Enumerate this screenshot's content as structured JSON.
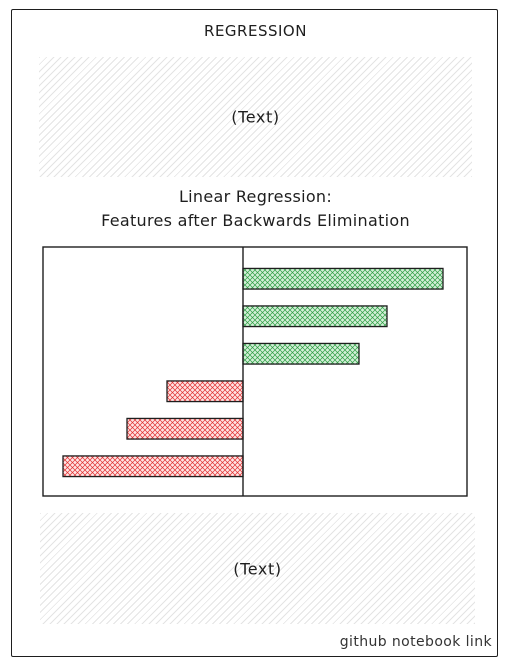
{
  "section": {
    "title": "REGRESSION"
  },
  "text_blocks": {
    "top_label": "(Text)",
    "bottom_label": "(Text)"
  },
  "chart_data": {
    "type": "bar",
    "orientation": "horizontal",
    "title_line1": "Linear Regression:",
    "title_line2": "Features after Backwards Elimination",
    "xlabel": "",
    "ylabel": "",
    "xlim": [
      -1.0,
      1.12
    ],
    "grid": false,
    "legend": "none",
    "categories": [
      "",
      "",
      "",
      "",
      "",
      ""
    ],
    "values": [
      1.0,
      0.72,
      0.58,
      -0.38,
      -0.58,
      -0.9
    ],
    "colors": {
      "positive_fill": "#d3f0d8",
      "positive_stroke": "#2f9e44",
      "negative_fill": "#ffe3e3",
      "negative_stroke": "#e03131"
    }
  },
  "footer": {
    "link_label": "github notebook link"
  }
}
